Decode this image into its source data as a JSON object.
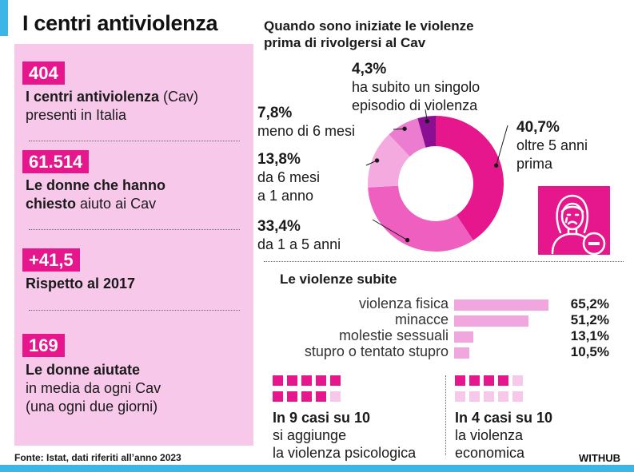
{
  "title": "I centri antiviolenza",
  "stats": [
    {
      "value": "404",
      "bold": "I centri antiviolenza",
      "text1": " (Cav)",
      "text2": "presenti in Italia"
    },
    {
      "value": "61.514",
      "bold1": "Le donne che hanno",
      "bold2": "chiesto",
      "text2": " aiuto ai Cav"
    },
    {
      "value": "+41,5",
      "bold": "Rispetto al 2017"
    },
    {
      "value": "169",
      "bold": "Le donne aiutate",
      "text1": "in media da ogni Cav",
      "text2": "(una ogni due giorni)"
    }
  ],
  "chart_data": [
    {
      "type": "pie",
      "title": "Quando sono iniziate le violenze prima di rivolgersi al Cav",
      "title_line1": "Quando sono iniziate le violenze",
      "title_line2": "prima di rivolgersi al Cav",
      "slices": [
        {
          "label": "oltre 5 anni prima",
          "label1": "oltre 5 anni",
          "label2": "prima",
          "value": 40.7,
          "text": "40,7%",
          "color": "#e6178c"
        },
        {
          "label": "da 1 a 5 anni",
          "value": 33.4,
          "text": "33,4%",
          "color": "#ee5fbf"
        },
        {
          "label": "da 6 mesi a 1 anno",
          "label1": "da 6 mesi",
          "label2": "a 1 anno",
          "value": 13.8,
          "text": "13,8%",
          "color": "#f4a9df"
        },
        {
          "label": "meno di 6 mesi",
          "value": 7.8,
          "text": "7,8%",
          "color": "#ec7ccf"
        },
        {
          "label": "ha subito un singolo episodio di violenza",
          "label1": "ha subito un singolo",
          "label2": "episodio di violenza",
          "value": 4.3,
          "text": "4,3%",
          "color": "#8a0f92"
        }
      ]
    },
    {
      "type": "bar",
      "title": "Le violenze subite",
      "categories": [
        "violenza fisica",
        "minacce",
        "molestie sessuali",
        "stupro o tentato stupro"
      ],
      "values": [
        65.2,
        51.2,
        13.1,
        10.5
      ],
      "value_labels": [
        "65,2%",
        "51,2%",
        "13,1%",
        "10,5%"
      ],
      "color": "#f2a6de"
    }
  ],
  "cases": [
    {
      "on": 9,
      "total": 10,
      "title": "In 9 casi su 10",
      "line1": "si aggiunge",
      "line2": "la violenza psicologica"
    },
    {
      "on": 4,
      "total": 10,
      "title": "In 4 casi su 10",
      "line1": "la violenza",
      "line2": "economica"
    }
  ],
  "source": "Fonte: Istat, dati riferiti all’anno 2023",
  "brand": "WITHUB",
  "colors": {
    "magenta": "#e6178c",
    "light_pink": "#f7c8e9",
    "blue": "#3bb6e6"
  }
}
